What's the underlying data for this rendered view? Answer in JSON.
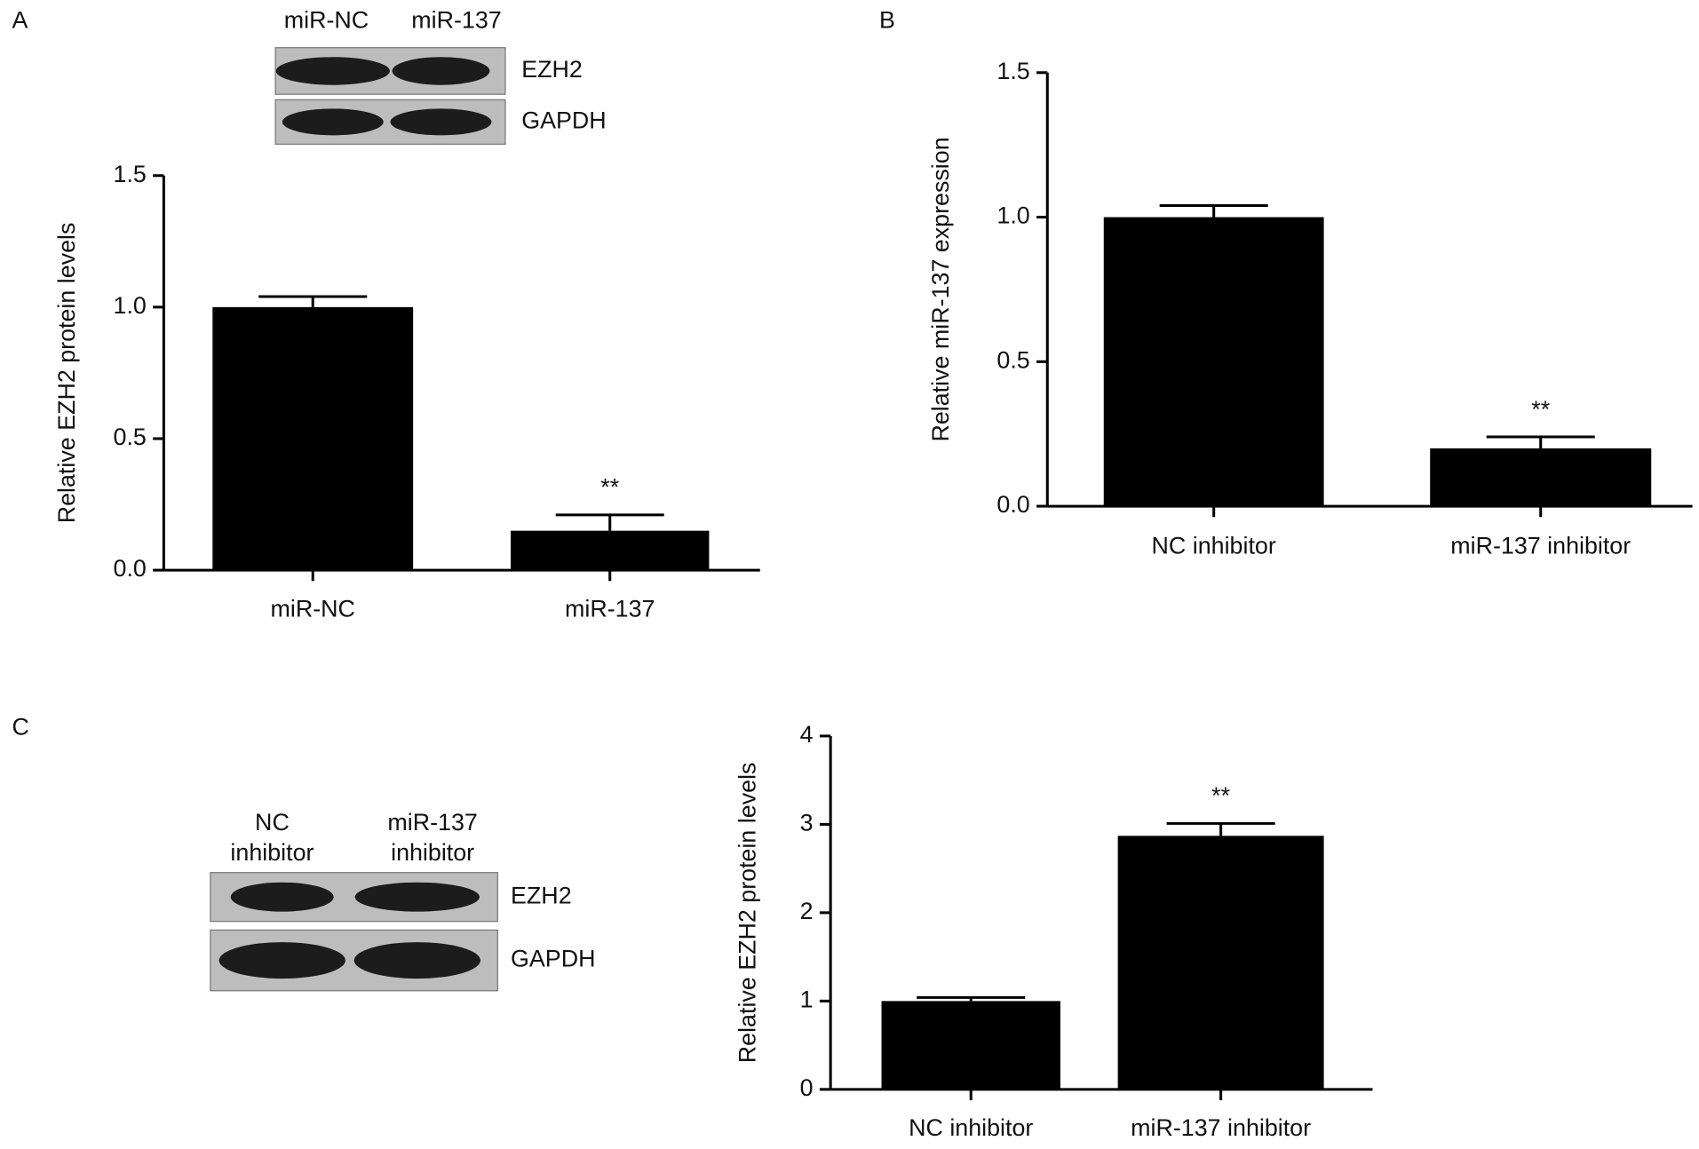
{
  "chart_data": [
    {
      "type": "bar",
      "panel": "A",
      "ylabel": "Relative EZH2 protein levels",
      "categories": [
        "miR-NC",
        "miR-137"
      ],
      "values": [
        1.0,
        0.15
      ],
      "errors": [
        0.04,
        0.06
      ],
      "annotations": [
        null,
        "**"
      ],
      "color": "#000000",
      "ylim": [
        0,
        1.5
      ],
      "yticks": [
        {
          "value": 0,
          "label": "0.0"
        },
        0.5,
        {
          "value": 1,
          "label": "1.0"
        },
        1.5
      ],
      "blot": {
        "lanes": [
          [
            "miR-NC"
          ],
          [
            "miR-137"
          ]
        ],
        "bands": [
          "EZH2",
          "GAPDH"
        ]
      }
    },
    {
      "type": "bar",
      "panel": "B",
      "ylabel": "Relative  miR-137 expression",
      "categories": [
        "NC inhibitor",
        "miR-137 inhibitor"
      ],
      "values": [
        1.0,
        0.2
      ],
      "errors": [
        0.04,
        0.04
      ],
      "annotations": [
        null,
        "**"
      ],
      "color": "#000000",
      "ylim": [
        0,
        1.5
      ],
      "yticks": [
        {
          "value": 0,
          "label": "0.0"
        },
        0.5,
        {
          "value": 1,
          "label": "1.0"
        },
        1.5
      ]
    },
    {
      "type": "bar",
      "panel": "C",
      "ylabel": "Relative EZH2 protein levels",
      "categories": [
        "NC inhibitor",
        "miR-137 inhibitor"
      ],
      "values": [
        1.0,
        2.87
      ],
      "errors": [
        0.04,
        0.14
      ],
      "annotations": [
        null,
        "**"
      ],
      "color": "#000000",
      "ylim": [
        0,
        4
      ],
      "yticks": [
        0,
        1,
        2,
        3,
        4
      ],
      "blot": {
        "lanes": [
          [
            "NC",
            "inhibitor"
          ],
          [
            "miR-137",
            "inhibitor"
          ]
        ],
        "bands": [
          "EZH2",
          "GAPDH"
        ]
      }
    }
  ]
}
